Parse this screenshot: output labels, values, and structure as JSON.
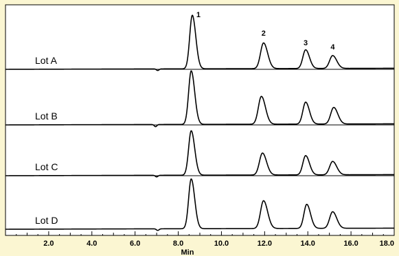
{
  "colors": {
    "background": "#fbf6d2",
    "plot_background": "#ffffff",
    "trace": "#000000",
    "frame": "#000000"
  },
  "chart_data": {
    "type": "line",
    "title": "",
    "xlabel": "Min",
    "ylabel": "",
    "xlim": [
      0,
      18.0
    ],
    "x_ticks": [
      2.0,
      4.0,
      6.0,
      8.0,
      10.0,
      12.0,
      14.0,
      16.0,
      18.0
    ],
    "x_tick_labels": [
      "2.0",
      "4.0",
      "6.0",
      "8.0",
      "10.0",
      "12.0",
      "14.0",
      "16.0",
      "18.0"
    ],
    "grid": false,
    "legend": "none",
    "stacked_traces": true,
    "peak_labels": [
      {
        "label": "1",
        "x": 8.65
      },
      {
        "label": "2",
        "x": 11.95
      },
      {
        "label": "3",
        "x": 13.9
      },
      {
        "label": "4",
        "x": 15.15
      }
    ],
    "series": [
      {
        "name": "Lot A",
        "baseline_drift": 0.02,
        "dip": {
          "x": 7.05,
          "depth": 0.03
        },
        "peaks": [
          {
            "x": 8.65,
            "height": 1.0,
            "width": 0.12
          },
          {
            "x": 11.95,
            "height": 0.48,
            "width": 0.14
          },
          {
            "x": 13.9,
            "height": 0.35,
            "width": 0.13
          },
          {
            "x": 15.15,
            "height": 0.24,
            "width": 0.14
          }
        ]
      },
      {
        "name": "Lot B",
        "baseline_drift": 0.02,
        "dip": {
          "x": 6.95,
          "depth": 0.04
        },
        "peaks": [
          {
            "x": 8.6,
            "height": 1.0,
            "width": 0.12
          },
          {
            "x": 11.85,
            "height": 0.52,
            "width": 0.14
          },
          {
            "x": 13.9,
            "height": 0.41,
            "width": 0.13
          },
          {
            "x": 15.2,
            "height": 0.31,
            "width": 0.14
          }
        ]
      },
      {
        "name": "Lot C",
        "baseline_drift": 0.02,
        "dip": {
          "x": 7.0,
          "depth": 0.03
        },
        "peaks": [
          {
            "x": 8.6,
            "height": 0.83,
            "width": 0.12
          },
          {
            "x": 11.9,
            "height": 0.41,
            "width": 0.14
          },
          {
            "x": 13.9,
            "height": 0.36,
            "width": 0.13
          },
          {
            "x": 15.15,
            "height": 0.25,
            "width": 0.14
          }
        ]
      },
      {
        "name": "Lot D",
        "baseline_drift": 0.02,
        "dip": {
          "x": 7.05,
          "depth": 0.03
        },
        "peaks": [
          {
            "x": 8.6,
            "height": 0.93,
            "width": 0.12
          },
          {
            "x": 11.95,
            "height": 0.52,
            "width": 0.14
          },
          {
            "x": 13.95,
            "height": 0.45,
            "width": 0.13
          },
          {
            "x": 15.15,
            "height": 0.31,
            "width": 0.14
          }
        ]
      }
    ]
  }
}
